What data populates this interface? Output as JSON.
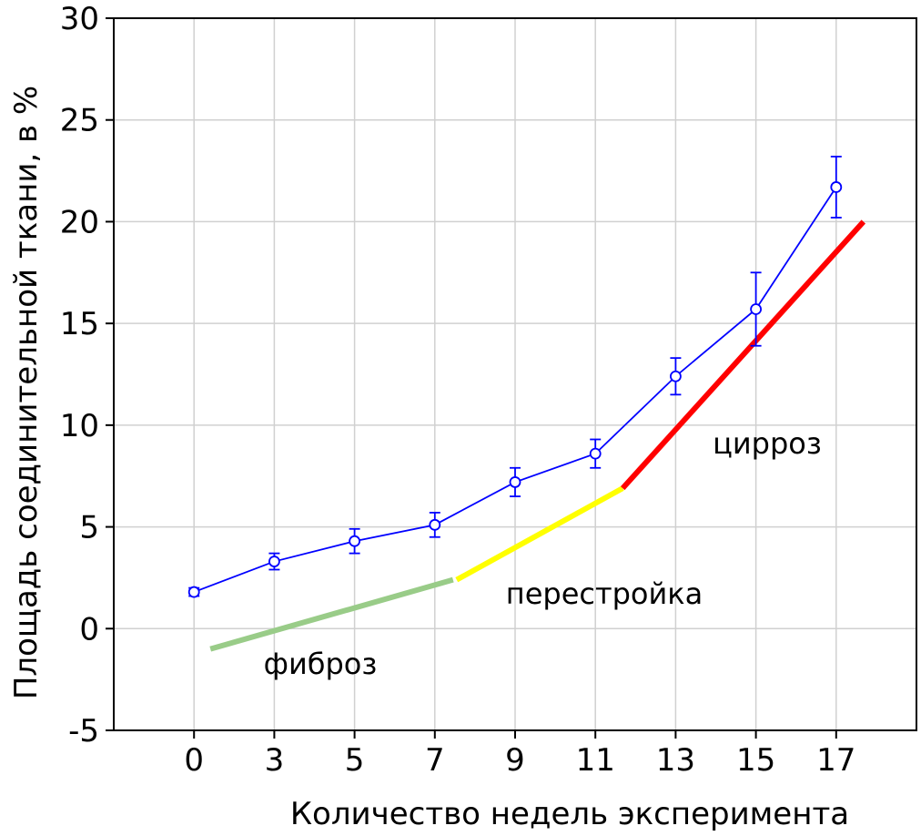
{
  "chart_data": {
    "type": "line",
    "title": "",
    "xlabel": "Количество недель эксперимента",
    "ylabel": "Площадь соединительной ткани, в %",
    "categories": [
      "0",
      "3",
      "5",
      "7",
      "9",
      "11",
      "13",
      "15",
      "17"
    ],
    "ylim": [
      -5,
      30
    ],
    "yticks": [
      -5,
      0,
      5,
      10,
      15,
      20,
      25,
      30
    ],
    "grid": true,
    "series": [
      {
        "values": [
          1.8,
          3.3,
          4.3,
          5.1,
          7.2,
          8.6,
          12.4,
          15.7,
          21.7
        ],
        "error": [
          0.2,
          0.4,
          0.6,
          0.6,
          0.7,
          0.7,
          0.9,
          1.8,
          1.5
        ],
        "color": "#0000ff"
      }
    ],
    "trend_segments": [
      {
        "label": "фиброз",
        "color": "#99cc88",
        "from": [
          "0",
          -1.0
        ],
        "to": [
          "7",
          2.4
        ]
      },
      {
        "label": "перестройка",
        "color": "#ffff00",
        "from": [
          "7",
          2.4
        ],
        "to": [
          "11",
          6.9
        ]
      },
      {
        "label": "цирроз",
        "color": "#ff0000",
        "from": [
          "11",
          6.9
        ],
        "to": [
          "17",
          20.0
        ]
      }
    ]
  }
}
